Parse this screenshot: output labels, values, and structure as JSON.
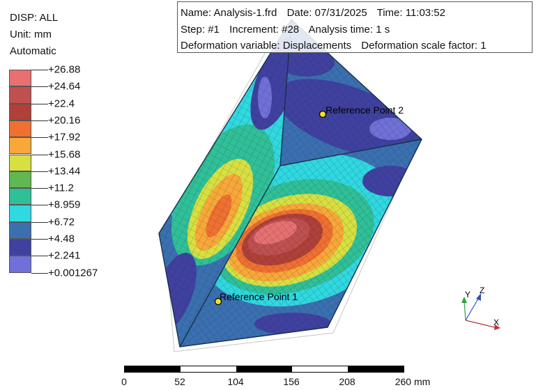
{
  "legend": {
    "title": "DISP: ALL",
    "unit": "Unit: mm",
    "mode": "Automatic",
    "levels": [
      "+26.88",
      "+24.64",
      "+22.4",
      "+20.16",
      "+17.92",
      "+15.68",
      "+13.44",
      "+11.2",
      "+8.959",
      "+6.72",
      "+4.48",
      "+2.241",
      "+0.001267"
    ],
    "colors": [
      "#e87070",
      "#c05050",
      "#b04038",
      "#f07030",
      "#f8a838",
      "#d8e040",
      "#60b850",
      "#30c098",
      "#30d8e0",
      "#3a70b0",
      "#4040a0",
      "#7070d8"
    ]
  },
  "info": {
    "name_label": "Name:",
    "name": "Analysis-1.frd",
    "date_label": "Date:",
    "date": "07/31/2025",
    "time_label": "Time:",
    "time": "11:03:52",
    "step_label": "Step:",
    "step": "#1",
    "increment_label": "Increment:",
    "increment": "#28",
    "analysis_time_label": "Analysis time:",
    "analysis_time": "1 s",
    "def_var_label": "Deformation variable:",
    "def_var": "Displacements",
    "def_scale_label": "Deformation scale factor:",
    "def_scale": "1"
  },
  "reference_points": [
    {
      "label": "Reference Point 1"
    },
    {
      "label": "Reference Point 2"
    }
  ],
  "scale_bar": {
    "ticks": [
      "0",
      "52",
      "104",
      "156",
      "208",
      "260 mm"
    ]
  },
  "triad": {
    "x": "X",
    "y": "Y",
    "z": "Z",
    "colors": {
      "x": "#c0303a",
      "y": "#30a040",
      "z": "#3050c0"
    }
  }
}
